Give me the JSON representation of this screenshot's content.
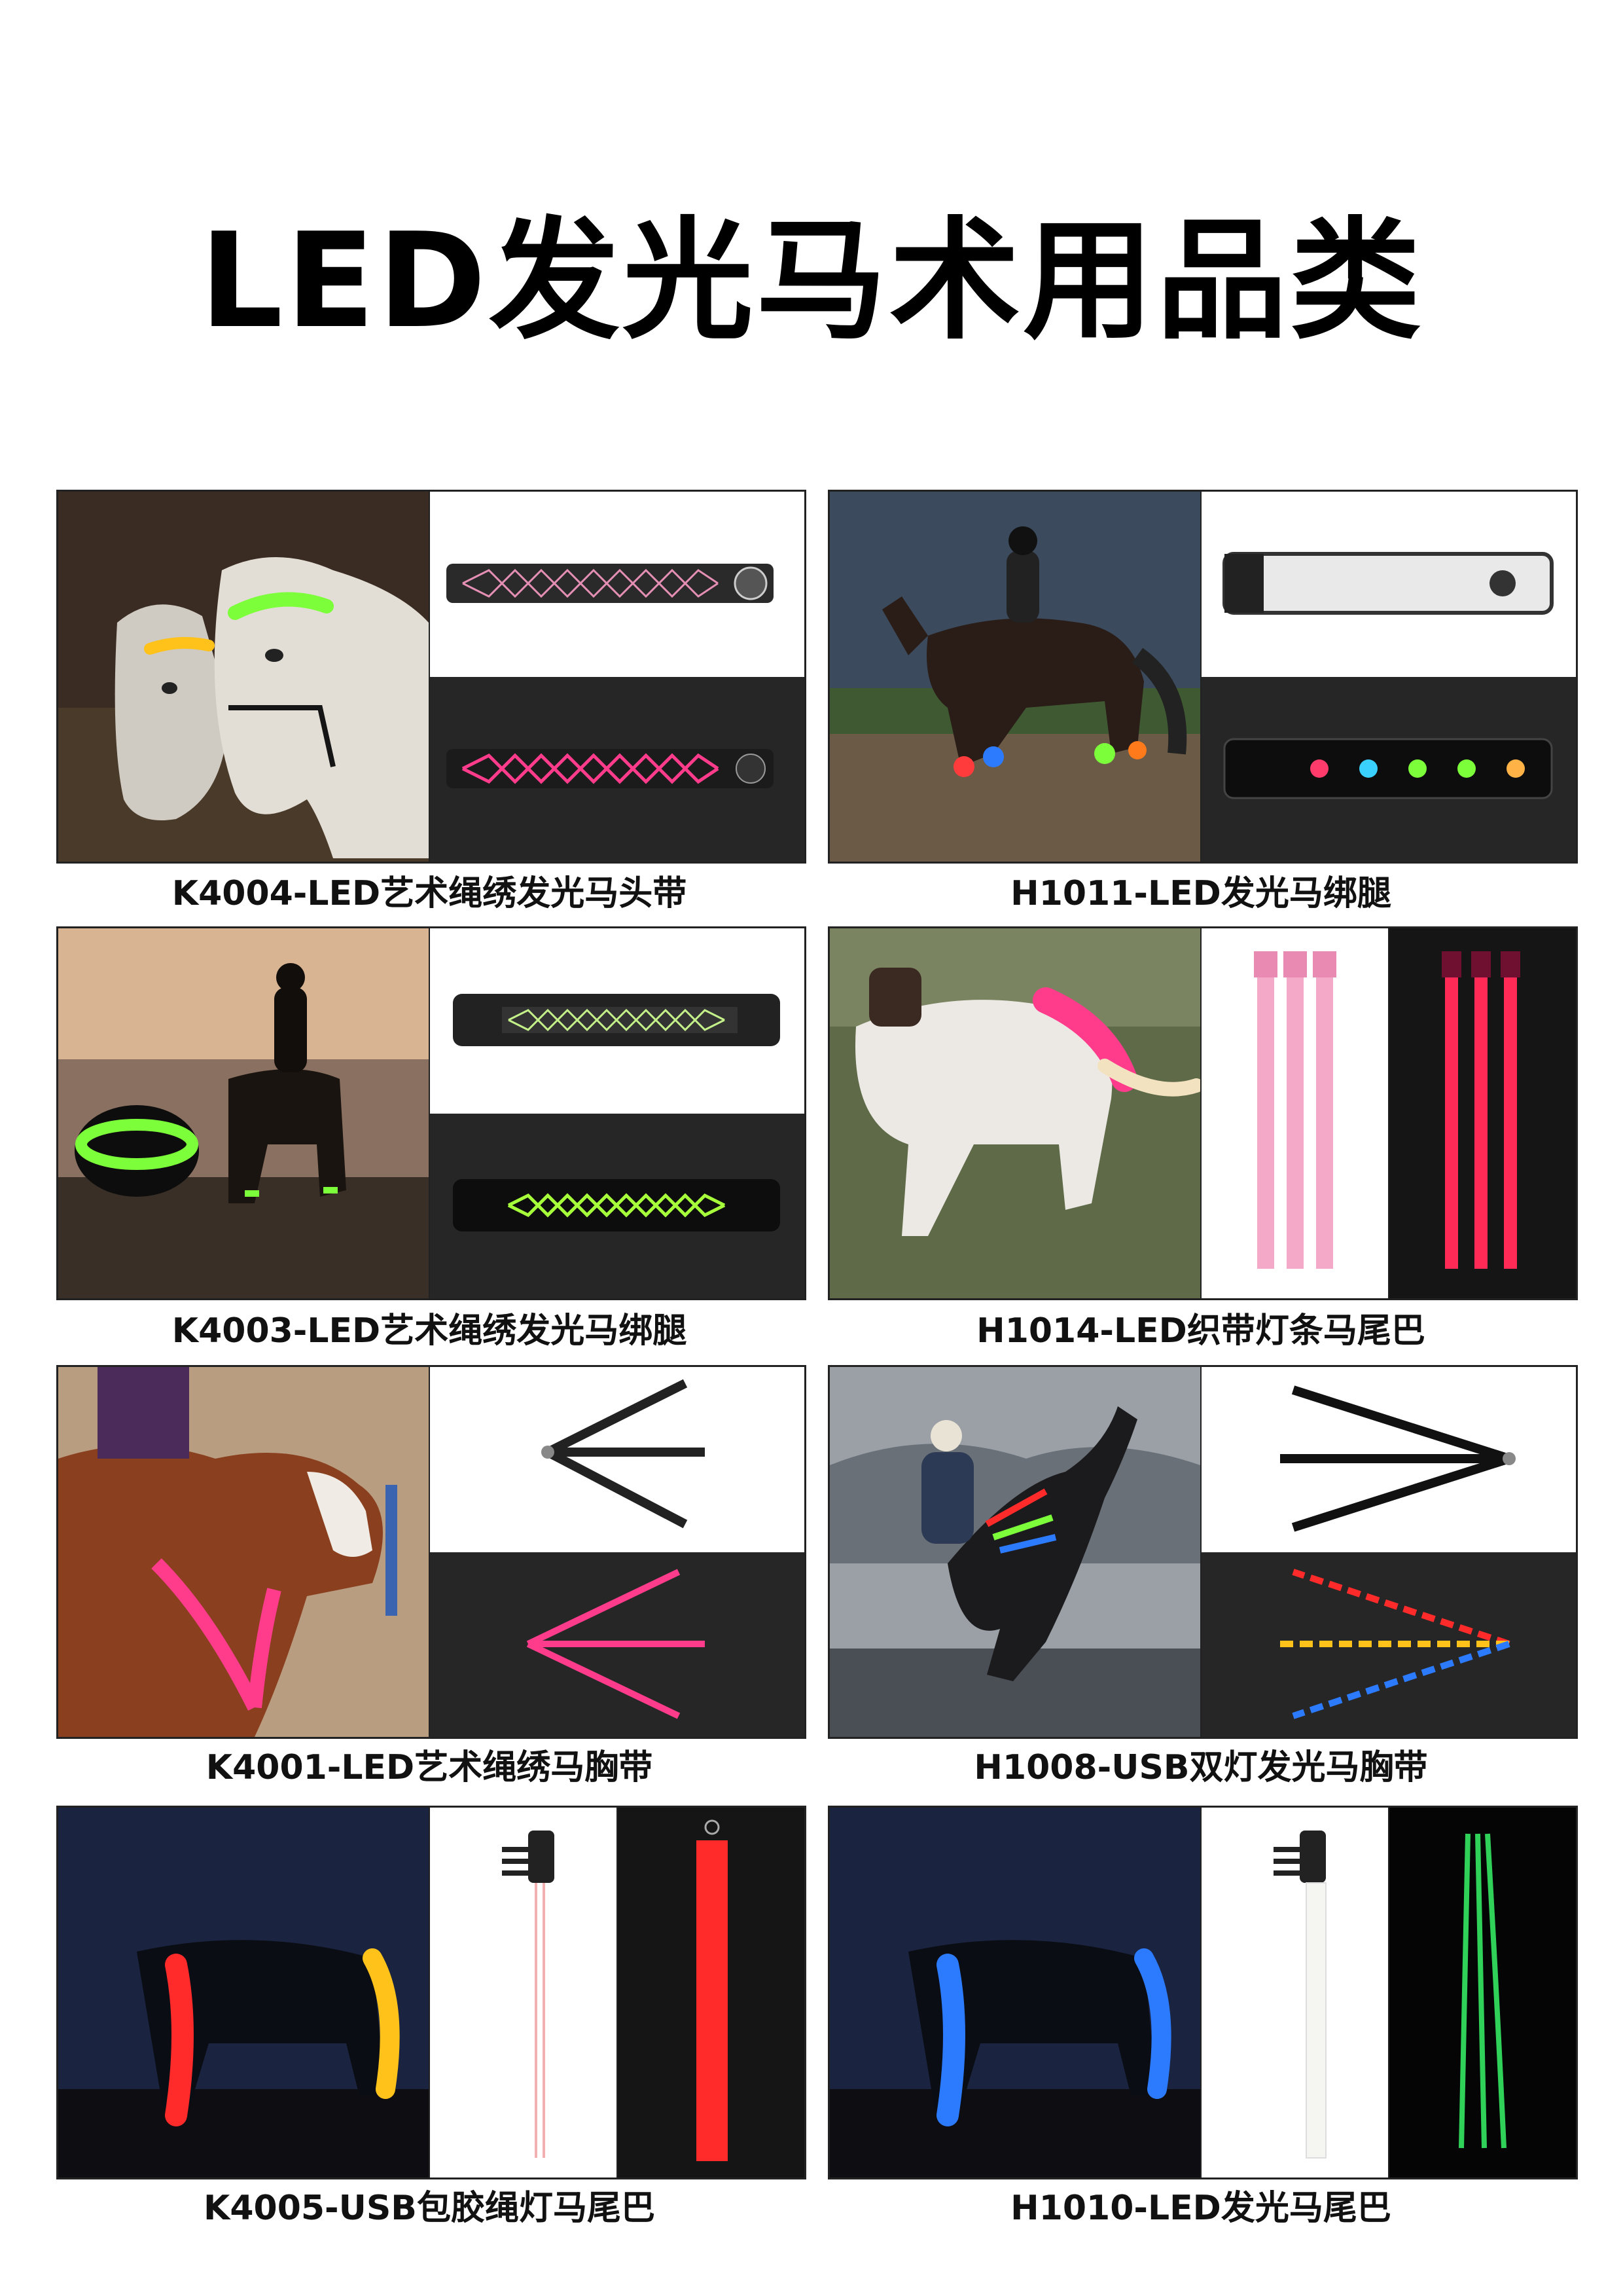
{
  "page_title": "LED发光马术用品类",
  "products": [
    {
      "caption": "K4004-LED艺术绳绣发光马头带"
    },
    {
      "caption": "H1011-LED发光马绑腿"
    },
    {
      "caption": "K4003-LED艺术绳绣发光马绑腿"
    },
    {
      "caption": "H1014-LED织带灯条马尾巴"
    },
    {
      "caption": "K4001-LED艺术绳绣马胸带"
    },
    {
      "caption": "H1008-USB双灯发光马胸带"
    },
    {
      "caption": "K4005-USB包胶绳灯马尾巴"
    },
    {
      "caption": "H1010-LED发光马尾巴"
    }
  ],
  "product_badge": "LED",
  "colors": {
    "green_glow": "#7CFF3A",
    "pink_glow": "#FF3C8C",
    "red_glow": "#FF2A2A",
    "blue_glow": "#2C7BFF",
    "yellow_glow": "#FFC21A"
  }
}
